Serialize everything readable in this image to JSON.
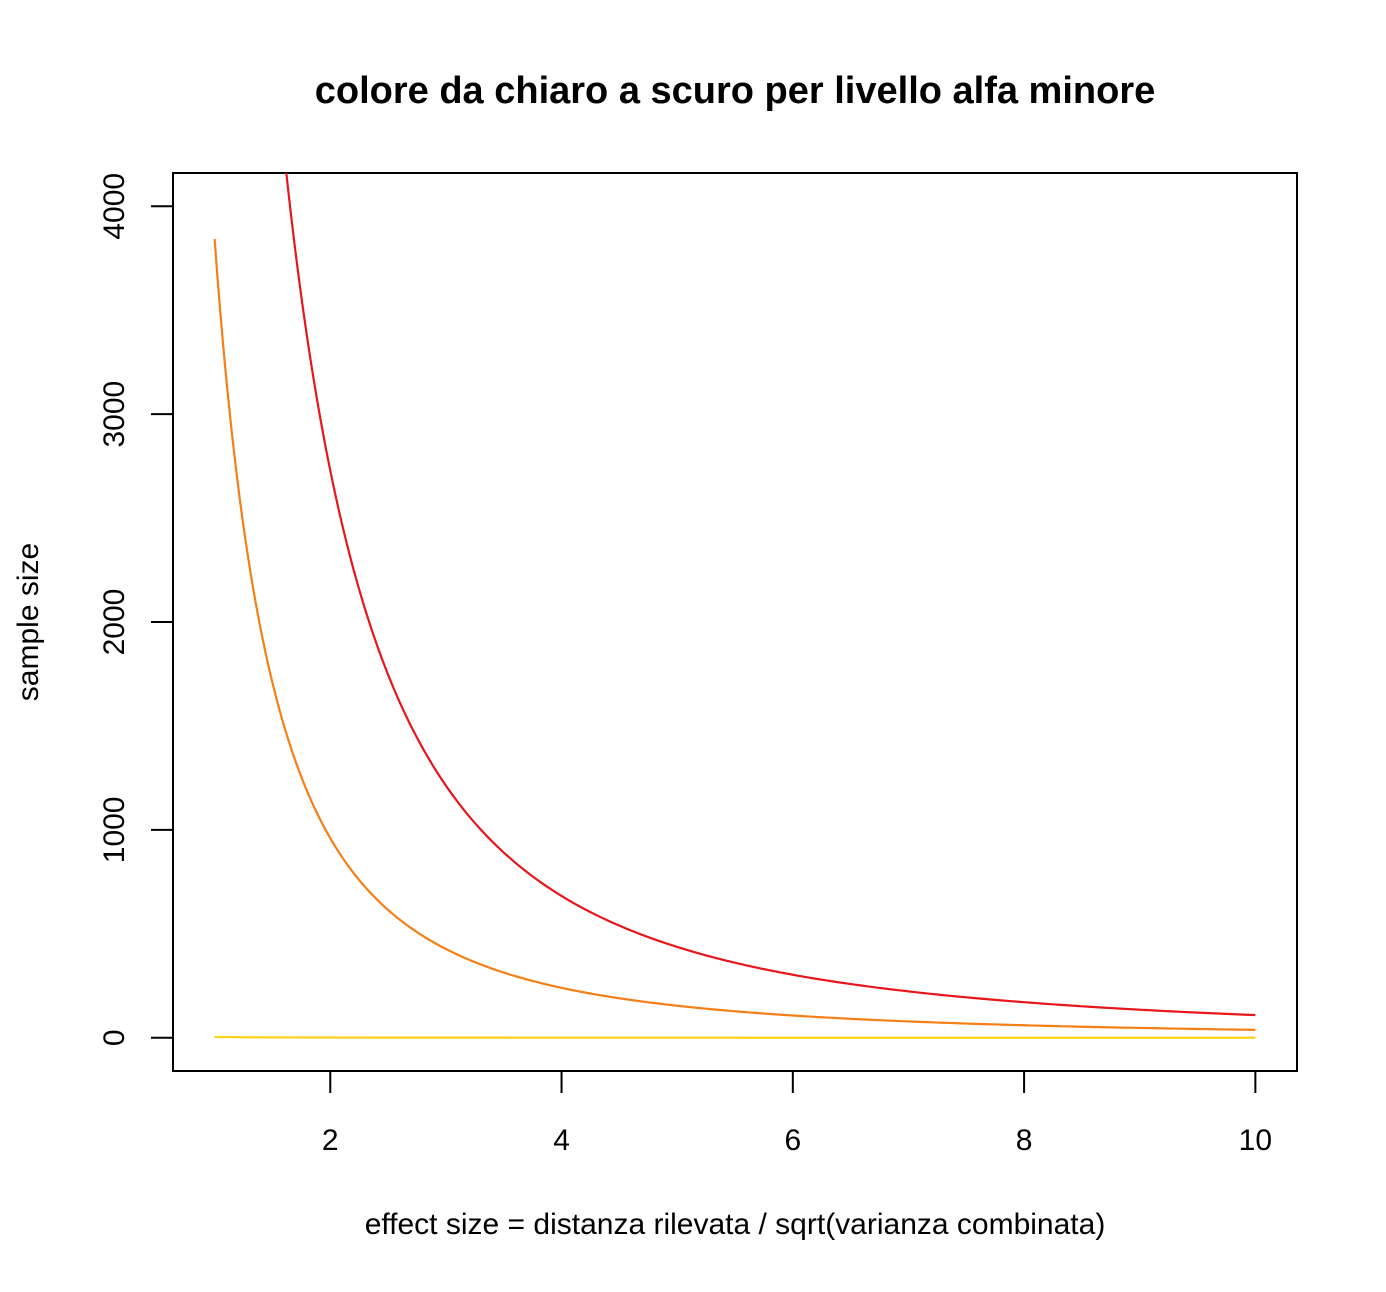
{
  "chart_data": {
    "type": "line",
    "title": "colore da chiaro a scuro per livello alfa minore",
    "xlabel": "effect size = distanza rilevata / sqrt(varianza combinata)",
    "ylabel": "sample size",
    "xlim": [
      0.64,
      10.36
    ],
    "ylim": [
      -160,
      4160
    ],
    "x_ticks": [
      2,
      4,
      6,
      8,
      10
    ],
    "x_tick_labels": [
      "2",
      "4",
      "6",
      "8",
      "10"
    ],
    "y_ticks": [
      0,
      1000,
      2000,
      3000,
      4000
    ],
    "y_tick_labels": [
      "0",
      "1000",
      "2000",
      "3000",
      "4000"
    ],
    "grid": false,
    "legend": "none",
    "series": [
      {
        "color": "#FFD21A",
        "x": [
          1,
          2,
          4,
          6,
          8,
          10
        ],
        "y": [
          4,
          1,
          0.3,
          0.1,
          0.06,
          0.04
        ]
      },
      {
        "color": "#F57F17",
        "x": [
          1,
          1.5,
          2,
          3,
          4,
          5,
          6,
          8,
          10
        ],
        "y": [
          3842,
          1708,
          960,
          427,
          240,
          154,
          107,
          60,
          38
        ]
      },
      {
        "color": "#E8161B",
        "x": [
          1.62,
          2,
          3,
          4,
          5,
          6,
          8,
          10
        ],
        "y": [
          4160,
          2729,
          1213,
          682,
          437,
          303,
          171,
          109
        ]
      }
    ]
  }
}
